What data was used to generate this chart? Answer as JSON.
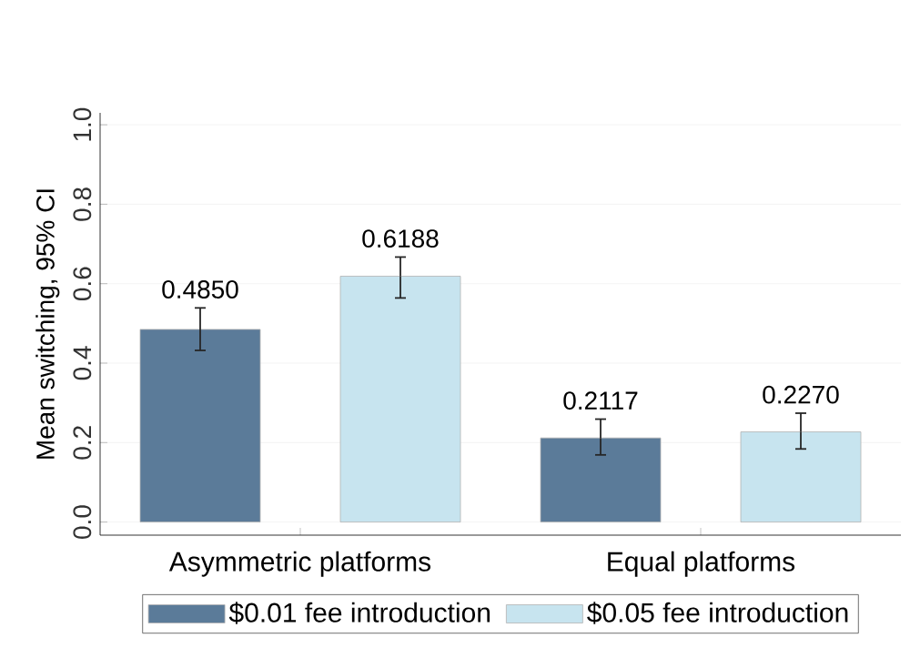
{
  "chart_data": {
    "type": "bar",
    "ylabel": "Mean switching, 95% CI",
    "categories": [
      "Asymmetric platforms",
      "Equal platforms"
    ],
    "series": [
      {
        "name": "$0.01 fee introduction",
        "color": "#5b7b99",
        "values": [
          0.485,
          0.2117
        ],
        "value_labels": [
          "0.4850",
          "0.2117"
        ],
        "errors": [
          [
            0.432,
            0.539
          ],
          [
            0.169,
            0.259
          ]
        ]
      },
      {
        "name": "$0.05 fee introduction",
        "color": "#c7e4ef",
        "values": [
          0.6188,
          0.227
        ],
        "value_labels": [
          "0.6188",
          "0.2270"
        ],
        "errors": [
          [
            0.564,
            0.667
          ],
          [
            0.184,
            0.274
          ]
        ]
      }
    ],
    "ylim": [
      -0.033,
      1.03
    ],
    "yticks": [
      {
        "value": 0,
        "label": "0.0"
      },
      {
        "value": 0.2,
        "label": "0.2"
      },
      {
        "value": 0.4,
        "label": "0.4"
      },
      {
        "value": 0.6,
        "label": "0.6"
      },
      {
        "value": 0.8,
        "label": "0.8"
      },
      {
        "value": 1,
        "label": "1.0"
      }
    ],
    "grid": "y",
    "legend": "bottom"
  }
}
